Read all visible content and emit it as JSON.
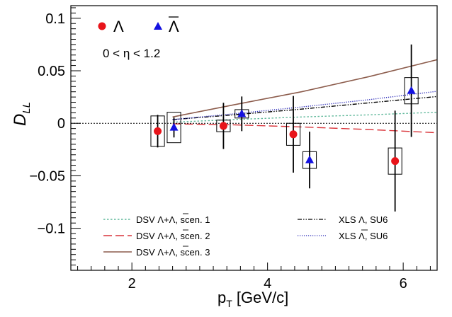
{
  "chart_data": {
    "type": "scatter",
    "xlabel": "p",
    "xlabel_sub": "T",
    "xlabel_unit": " [GeV/c]",
    "ylabel": "D",
    "ylabel_sub": "LL",
    "xlim": [
      1.1,
      6.5
    ],
    "ylim": [
      -0.14,
      0.112
    ],
    "x_ticks": [
      2,
      4,
      6
    ],
    "x_tick_labels": [
      "2",
      "4",
      "6"
    ],
    "y_ticks": [
      -0.1,
      -0.05,
      0,
      0.05,
      0.1
    ],
    "y_tick_labels": [
      "−0.1",
      "−0.05",
      "0",
      "0.05",
      "0.1"
    ],
    "annotation": "0 < η < 1.2",
    "series": [
      {
        "name": "Λ",
        "marker": "circle",
        "color": "#e8141a",
        "points": [
          {
            "x": 2.38,
            "y": -0.0075,
            "err": 0.0155,
            "sys_x": 0.1,
            "sys_y": 0.0145
          },
          {
            "x": 3.35,
            "y": -0.0025,
            "err": 0.022,
            "sys_x": 0.1,
            "sys_y": 0.0055
          },
          {
            "x": 4.38,
            "y": -0.0105,
            "err": 0.0365,
            "sys_x": 0.1,
            "sys_y": 0.0105
          },
          {
            "x": 5.88,
            "y": -0.036,
            "err": 0.048,
            "sys_x": 0.1,
            "sys_y": 0.0125
          }
        ]
      },
      {
        "name": "Λ̄",
        "marker": "triangle",
        "color": "#1411e0",
        "points": [
          {
            "x": 2.62,
            "y": -0.004,
            "err": 0.0095,
            "sys_x": 0.1,
            "sys_y": 0.0145
          },
          {
            "x": 3.62,
            "y": 0.009,
            "err": 0.0165,
            "sys_x": 0.1,
            "sys_y": 0.004
          },
          {
            "x": 4.62,
            "y": -0.035,
            "err": 0.027,
            "sys_x": 0.1,
            "sys_y": 0.008
          },
          {
            "x": 6.12,
            "y": 0.031,
            "err": 0.044,
            "sys_x": 0.1,
            "sys_y": 0.0125
          }
        ]
      }
    ],
    "curves": [
      {
        "name": "DSV Λ+Λ̄, scen. 1",
        "style": "dotted",
        "color": "#5fb89a",
        "x": [
          2.6,
          3.5,
          4.5,
          5.5,
          6.5
        ],
        "y": [
          0.001,
          0.0035,
          0.006,
          0.008,
          0.0105
        ]
      },
      {
        "name": "DSV Λ+Λ̄, scen. 2",
        "style": "longdash",
        "color": "#d9343a",
        "x": [
          2.6,
          3.5,
          4.5,
          5.5,
          6.5
        ],
        "y": [
          -0.0005,
          -0.0015,
          -0.0035,
          -0.006,
          -0.009
        ]
      },
      {
        "name": "DSV Λ+Λ̄, scen. 3",
        "style": "solid",
        "color": "#8c5c4c",
        "x": [
          2.6,
          3.5,
          4.5,
          5.5,
          6.5
        ],
        "y": [
          0.006,
          0.0175,
          0.03,
          0.0445,
          0.0605
        ]
      },
      {
        "name": "XLS Λ, SU6",
        "style": "dashdot",
        "color": "#000000",
        "x": [
          2.6,
          3.5,
          4.5,
          5.5,
          6.5
        ],
        "y": [
          0.0035,
          0.008,
          0.0135,
          0.0195,
          0.0255
        ]
      },
      {
        "name": "XLS Λ̄, SU6",
        "style": "finedot",
        "color": "#2a2ab8",
        "x": [
          2.6,
          3.5,
          4.5,
          5.5,
          6.5
        ],
        "y": [
          0.0035,
          0.009,
          0.0155,
          0.0225,
          0.0305
        ]
      }
    ],
    "legend_top": [
      "Λ",
      "Λ̄"
    ],
    "legend_bottom_placement": "bottom",
    "zero_line": true,
    "grid": false
  }
}
